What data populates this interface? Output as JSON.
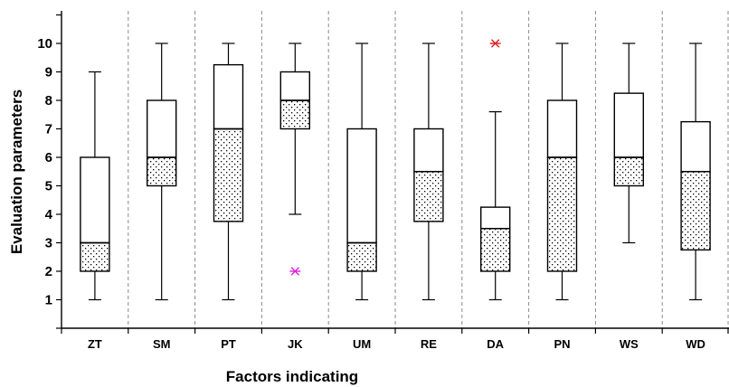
{
  "chart_data": {
    "type": "box",
    "title": "",
    "xlabel": "Factors indicating",
    "ylabel": "Evaluation parameters",
    "ylim": [
      0,
      11
    ],
    "y_ticks": [
      1,
      2,
      3,
      4,
      5,
      6,
      7,
      8,
      9,
      10
    ],
    "grid": "vertical dashed separators between categories",
    "categories": [
      "ZT",
      "SM",
      "PT",
      "JK",
      "UM",
      "RE",
      "DA",
      "PN",
      "WS",
      "WD"
    ],
    "boxes": [
      {
        "category": "ZT",
        "min": 1,
        "q1": 2,
        "median": 3,
        "q3": 6,
        "max": 9
      },
      {
        "category": "SM",
        "min": 1,
        "q1": 5,
        "median": 6,
        "q3": 8,
        "max": 10
      },
      {
        "category": "PT",
        "min": 1,
        "q1": 3.75,
        "median": 7,
        "q3": 9.25,
        "max": 10
      },
      {
        "category": "JK",
        "min": 4,
        "q1": 7,
        "median": 8,
        "q3": 9,
        "max": 10
      },
      {
        "category": "UM",
        "min": 1,
        "q1": 2,
        "median": 3,
        "q3": 7,
        "max": 10
      },
      {
        "category": "RE",
        "min": 1,
        "q1": 3.75,
        "median": 5.5,
        "q3": 7,
        "max": 10
      },
      {
        "category": "DA",
        "min": 1,
        "q1": 2,
        "median": 3.5,
        "q3": 4.25,
        "max": 7.6
      },
      {
        "category": "PN",
        "min": 1,
        "q1": 2,
        "median": 6,
        "q3": 8,
        "max": 10
      },
      {
        "category": "WS",
        "min": 3,
        "q1": 5,
        "median": 6,
        "q3": 8.25,
        "max": 10
      },
      {
        "category": "WD",
        "min": 1,
        "q1": 2.75,
        "median": 5.5,
        "q3": 7.25,
        "max": 10
      }
    ],
    "outliers": [
      {
        "category": "JK",
        "value": 2,
        "color": "#e020e0"
      },
      {
        "category": "DA",
        "value": 10,
        "color": "#e02020"
      }
    ],
    "colors": {
      "box_stroke": "#000000",
      "lower_box_pattern": "dotted",
      "grid": "#8a8a8a"
    }
  }
}
